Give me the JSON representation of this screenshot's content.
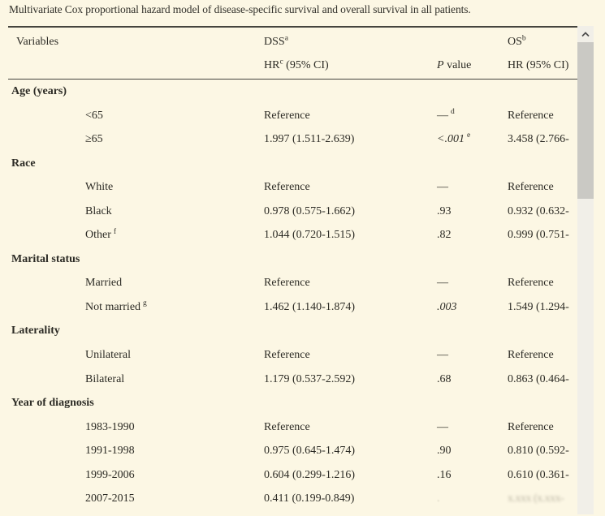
{
  "caption": "Multivariate Cox proportional hazard model of disease-specific survival and overall survival in all patients.",
  "table": {
    "header": {
      "variables": "Variables",
      "dss_label": "DSS",
      "dss_sup": "a",
      "os_label": "OS",
      "os_sup": "b",
      "dss_hr_label": "HR",
      "dss_hr_sup": "c",
      "dss_hr_rest": " (95% CI)",
      "p_label_italic": "P",
      "p_label_rest": " value",
      "os_hr_label": "HR (95% CI)"
    },
    "sections": [
      {
        "label": "Age (years)",
        "rows": [
          {
            "label": "<65",
            "dss": "Reference",
            "p": "—",
            "p_sup": "d",
            "os": "Reference"
          },
          {
            "label": "≥65",
            "dss": "1.997 (1.511-2.639)",
            "p": "<.001",
            "p_sup": "e",
            "p_italic": true,
            "os": "3.458 (2.766-"
          }
        ]
      },
      {
        "label": "Race",
        "rows": [
          {
            "label": "White",
            "dss": "Reference",
            "p": "—",
            "os": "Reference"
          },
          {
            "label": "Black",
            "dss": "0.978 (0.575-1.662)",
            "p": ".93",
            "os": "0.932 (0.632-"
          },
          {
            "label": "Other",
            "label_sup": "f",
            "dss": "1.044 (0.720-1.515)",
            "p": ".82",
            "os": "0.999 (0.751-"
          }
        ]
      },
      {
        "label": "Marital status",
        "rows": [
          {
            "label": "Married",
            "dss": "Reference",
            "p": "—",
            "os": "Reference"
          },
          {
            "label": "Not married",
            "label_sup": "g",
            "dss": "1.462 (1.140-1.874)",
            "p": ".003",
            "p_italic": true,
            "os": "1.549 (1.294-"
          }
        ]
      },
      {
        "label": "Laterality",
        "rows": [
          {
            "label": "Unilateral",
            "dss": "Reference",
            "p": "—",
            "os": "Reference"
          },
          {
            "label": "Bilateral",
            "dss": "1.179 (0.537-2.592)",
            "p": ".68",
            "os": "0.863 (0.464-"
          }
        ]
      },
      {
        "label": "Year of diagnosis",
        "rows": [
          {
            "label": "1983-1990",
            "dss": "Reference",
            "p": "—",
            "os": "Reference"
          },
          {
            "label": "1991-1998",
            "dss": "0.975 (0.645-1.474)",
            "p": ".90",
            "os": "0.810 (0.592-"
          },
          {
            "label": "1999-2006",
            "dss": "0.604 (0.299-1.216)",
            "p": ".16",
            "os": "0.610 (0.361-"
          },
          {
            "label": "2007-2015",
            "dss": "0.411 (0.199-0.849)",
            "p": "",
            "os": "",
            "blurred": true,
            "os_illegible_approx": "x.xxx (x.xxx-",
            "p_artifact": "."
          }
        ]
      }
    ]
  },
  "scrollbar": {
    "orientation": "vertical",
    "up_arrow": "chevron-up"
  },
  "colors": {
    "background": "#fcf7e4",
    "text": "#2c2b25",
    "rule": "#45443e",
    "scroll_track": "#f1efe8",
    "scroll_thumb": "#cac9c4"
  }
}
